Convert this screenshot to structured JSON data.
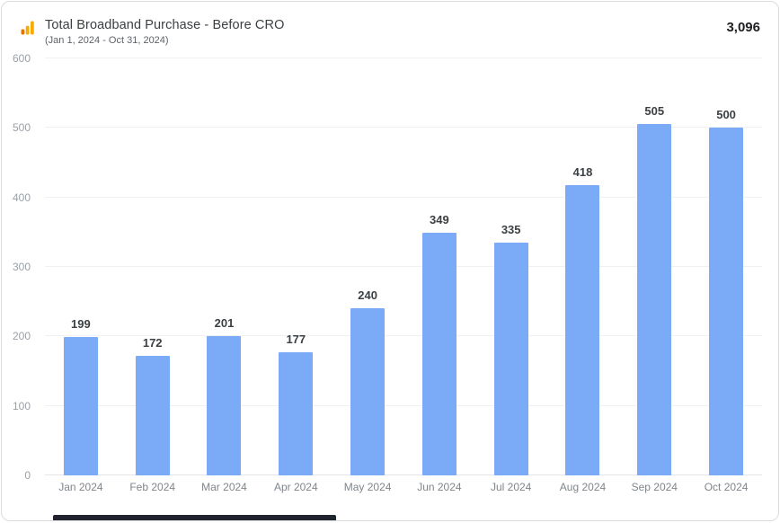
{
  "header": {
    "title": "Total Broadband Purchase - Before CRO",
    "subtitle": "(Jan 1, 2024 - Oct 31, 2024)",
    "total": "3,096",
    "icon": "analytics-bars-icon"
  },
  "colors": {
    "bar": "#7baaf7",
    "icon_orange_dark": "#e37400",
    "icon_orange": "#f9ab00",
    "value_label": "#3c4043",
    "axis_label": "#9aa0a6"
  },
  "chart_data": {
    "type": "bar",
    "categories": [
      "Jan 2024",
      "Feb 2024",
      "Mar 2024",
      "Apr 2024",
      "May 2024",
      "Jun 2024",
      "Jul 2024",
      "Aug 2024",
      "Sep 2024",
      "Oct 2024"
    ],
    "values": [
      199,
      172,
      201,
      177,
      240,
      349,
      335,
      418,
      505,
      500
    ],
    "title": "Total Broadband Purchase - Before CRO",
    "subtitle": "(Jan 1, 2024 - Oct 31, 2024)",
    "total": 3096,
    "xlabel": "",
    "ylabel": "",
    "ylim": [
      0,
      600
    ],
    "yticks": [
      0,
      100,
      200,
      300,
      400,
      500,
      600
    ],
    "grid": true,
    "legend": false,
    "bar_color": "#7baaf7"
  }
}
